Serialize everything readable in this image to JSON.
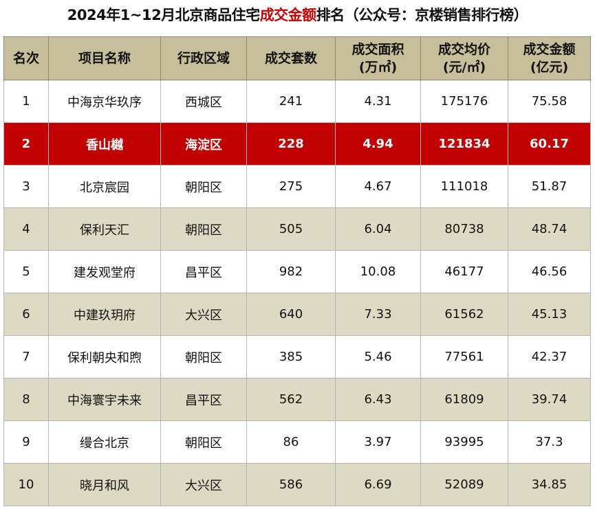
{
  "title": {
    "prefix": "2024年1~12月北京商品住宅",
    "highlight": "成交金额",
    "suffix": "排名（公众号：京楼销售排行榜）"
  },
  "colors": {
    "header_bg": "#c7bf9a",
    "alt_row_bg": "#ddd9c3",
    "highlight_row_bg": "#c00000",
    "title_highlight": "#c00000"
  },
  "columns": [
    {
      "line1": "名次",
      "line2": ""
    },
    {
      "line1": "项目名称",
      "line2": ""
    },
    {
      "line1": "行政区域",
      "line2": ""
    },
    {
      "line1": "成交套数",
      "line2": ""
    },
    {
      "line1": "成交面积",
      "line2": "(万㎡)"
    },
    {
      "line1": "成交均价",
      "line2": "(元/㎡)"
    },
    {
      "line1": "成交金额",
      "line2": "(亿元)"
    }
  ],
  "rows": [
    [
      "1",
      "中海京华玖序",
      "西城区",
      "241",
      "4.31",
      "175176",
      "75.58"
    ],
    [
      "2",
      "香山樾",
      "海淀区",
      "228",
      "4.94",
      "121834",
      "60.17"
    ],
    [
      "3",
      "北京宸园",
      "朝阳区",
      "275",
      "4.67",
      "111018",
      "51.87"
    ],
    [
      "4",
      "保利天汇",
      "朝阳区",
      "505",
      "6.04",
      "80738",
      "48.74"
    ],
    [
      "5",
      "建发观堂府",
      "昌平区",
      "982",
      "10.08",
      "46177",
      "46.56"
    ],
    [
      "6",
      "中建玖玥府",
      "大兴区",
      "640",
      "7.33",
      "61562",
      "45.13"
    ],
    [
      "7",
      "保利朝央和煦",
      "朝阳区",
      "385",
      "5.46",
      "77561",
      "42.37"
    ],
    [
      "8",
      "中海寰宇未来",
      "昌平区",
      "562",
      "6.43",
      "61809",
      "39.74"
    ],
    [
      "9",
      "缦合北京",
      "朝阳区",
      "86",
      "3.97",
      "93995",
      "37.3"
    ],
    [
      "10",
      "晓月和风",
      "大兴区",
      "586",
      "6.69",
      "52089",
      "34.85"
    ]
  ]
}
